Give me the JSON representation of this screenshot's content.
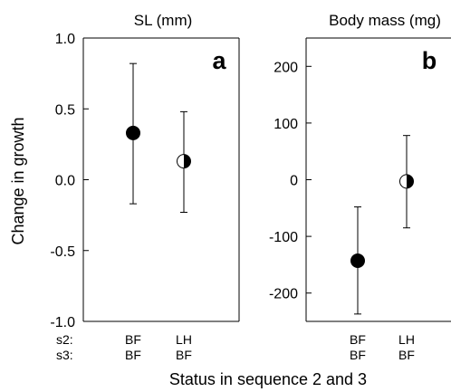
{
  "figure": {
    "ylabel": "Change in growth",
    "xlabel": "Status in sequence 2 and 3",
    "row_labels": [
      "s2:",
      "s3:"
    ]
  },
  "chart_data": [
    {
      "type": "scatter",
      "panel_label": "a",
      "title": "SL (mm)",
      "ylabel": "Change in growth",
      "ylim": [
        -1.0,
        1.0
      ],
      "yticks": [
        "1.0",
        "0.5",
        "0.0",
        "-0.5",
        "-1.0"
      ],
      "ytick_values": [
        1.0,
        0.5,
        0.0,
        -0.5,
        -1.0
      ],
      "categories": [
        "BF/BF",
        "LH/BF"
      ],
      "category_rows": [
        [
          "BF",
          "BF"
        ],
        [
          "LH",
          "BF"
        ]
      ],
      "values": [
        0.33,
        0.13
      ],
      "error_lower": [
        -0.17,
        -0.23
      ],
      "error_upper": [
        0.82,
        0.48
      ],
      "markers": [
        "filled",
        "half-filled"
      ]
    },
    {
      "type": "scatter",
      "panel_label": "b",
      "title": "Body mass (mg)",
      "ylim": [
        -250,
        250
      ],
      "yticks": [
        "200",
        "100",
        "0",
        "-100",
        "-200"
      ],
      "ytick_values": [
        200,
        100,
        0,
        -100,
        -200
      ],
      "categories": [
        "BF/BF",
        "LH/BF"
      ],
      "category_rows": [
        [
          "BF",
          "BF"
        ],
        [
          "LH",
          "BF"
        ]
      ],
      "values": [
        -143,
        -3
      ],
      "error_lower": [
        -237,
        -85
      ],
      "error_upper": [
        -48,
        78
      ],
      "markers": [
        "filled",
        "half-filled"
      ]
    }
  ]
}
